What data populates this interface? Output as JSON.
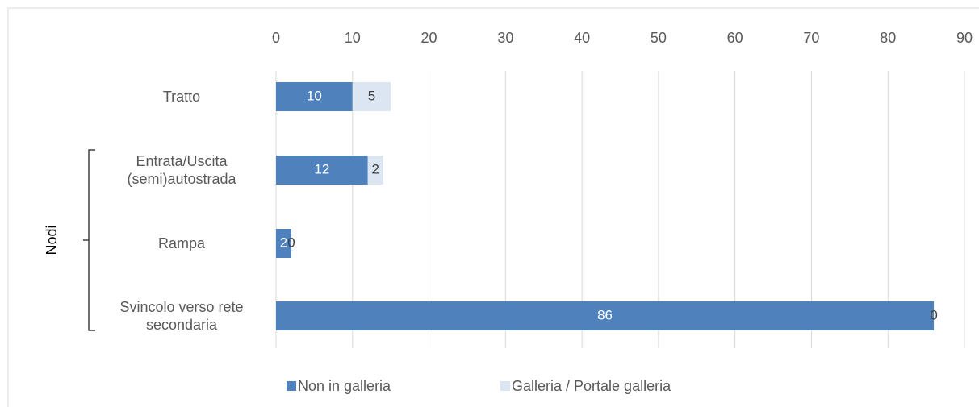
{
  "chart_data": {
    "type": "stacked_bar_horizontal",
    "categories": [
      "Tratto",
      "Entrata/Uscita (semi)autostrada",
      "Rampa",
      "Svincolo verso rete secondaria"
    ],
    "group_label": "Nodi",
    "series": [
      {
        "name": "Non in galleria",
        "color": "#4f81bd",
        "values": [
          10,
          12,
          2,
          86
        ]
      },
      {
        "name": "Galleria / Portale galleria",
        "color": "#dce6f2",
        "values": [
          5,
          2,
          0,
          0
        ]
      }
    ],
    "xlim": [
      0,
      90
    ],
    "xticks": [
      0,
      10,
      20,
      30,
      40,
      50,
      60,
      70,
      80,
      90
    ],
    "grid": true,
    "legend": "bottom"
  }
}
